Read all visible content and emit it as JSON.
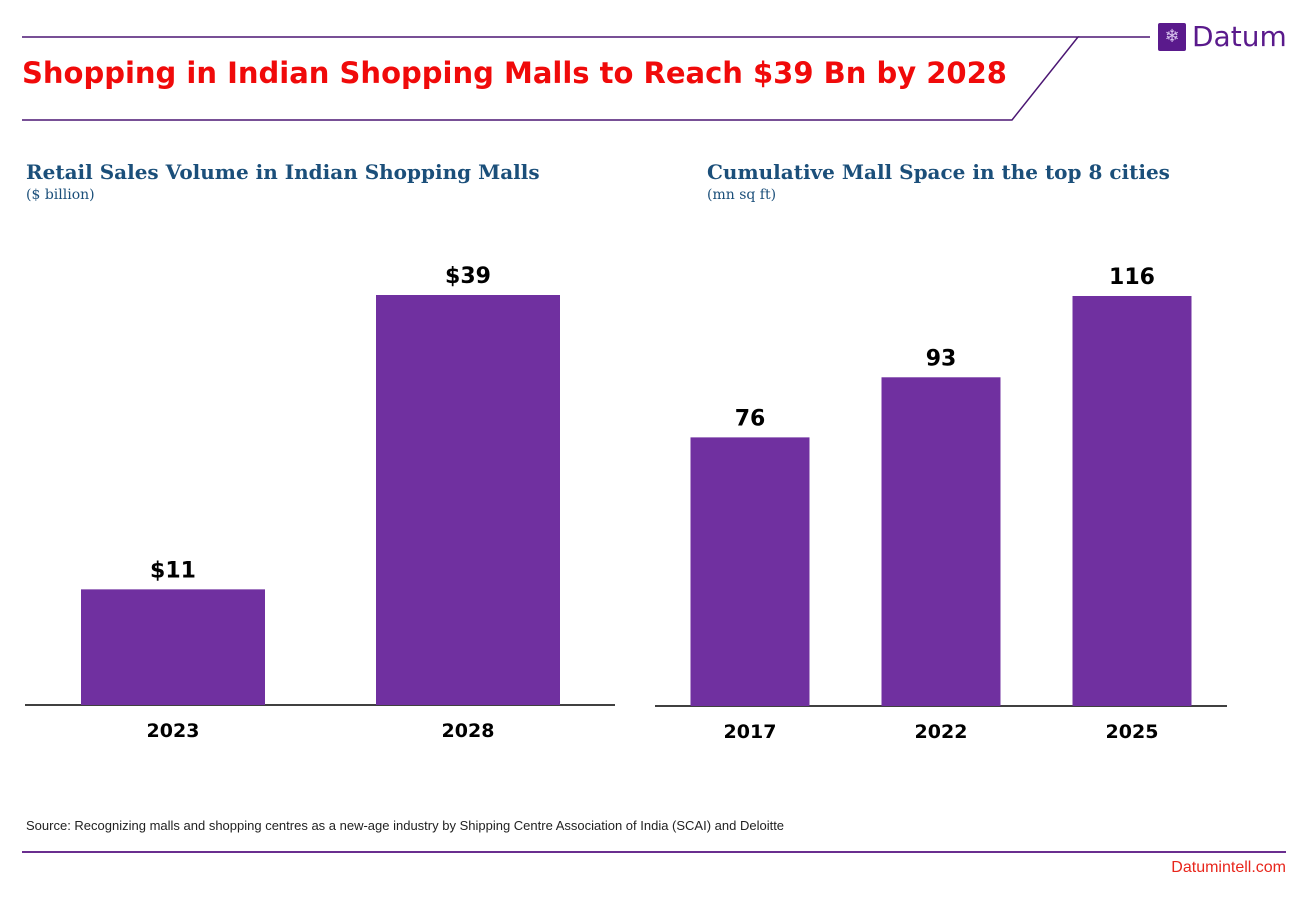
{
  "header": {
    "title": "Shopping in Indian Shopping Malls to Reach $39 Bn by 2028"
  },
  "logo": {
    "text": "Datum",
    "icon": "snowflake-network-icon"
  },
  "colors": {
    "bar": "#7030a0",
    "title": "#f00a0a",
    "chart_title": "#1b4f7a",
    "accent": "#5a1a8c"
  },
  "chart_data": [
    {
      "type": "bar",
      "title": "Retail Sales Volume in Indian Shopping Malls",
      "subtitle": "($ billion)",
      "categories": [
        "2023",
        "2028"
      ],
      "values": [
        11,
        39
      ],
      "data_labels": [
        "$11",
        "$39"
      ],
      "grid": false
    },
    {
      "type": "bar",
      "title": "Cumulative Mall Space in the top 8 cities",
      "subtitle": "(mn sq ft)",
      "categories": [
        "2017",
        "2022",
        "2025"
      ],
      "values": [
        76,
        93,
        116
      ],
      "data_labels": [
        "76",
        "93",
        "116"
      ],
      "grid": false
    }
  ],
  "footer": {
    "source": "Source: Recognizing malls and shopping centres as a new-age industry by Shipping Centre Association of India (SCAI) and Deloitte",
    "site": "Datumintell.com"
  }
}
